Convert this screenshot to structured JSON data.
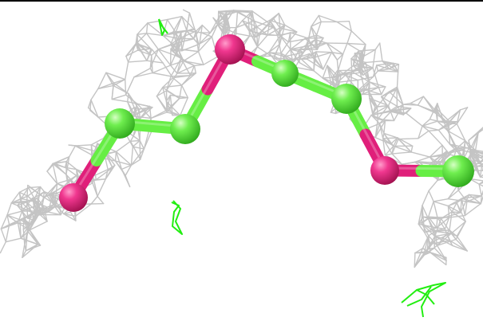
{
  "scene": {
    "background_color": "#ffffff",
    "frame_line_color": "#000000",
    "mesh": {
      "icon": "electron-density-mesh",
      "color": "#c4c4c4"
    },
    "bond": {
      "color_green": "#66ee44",
      "color_pink": "#e01f7a"
    },
    "atoms": [
      {
        "element": "oxygen",
        "color": "#e01f7a"
      },
      {
        "element": "carbon",
        "color": "#5de23f"
      },
      {
        "element": "carbon",
        "color": "#5de23f"
      },
      {
        "element": "oxygen",
        "color": "#e01f7a"
      },
      {
        "element": "carbon",
        "color": "#5de23f"
      },
      {
        "element": "carbon",
        "color": "#5de23f"
      },
      {
        "element": "oxygen",
        "color": "#e01f7a"
      },
      {
        "element": "carbon",
        "color": "#5de23f"
      }
    ],
    "extra_density_color": "#22ee11"
  }
}
